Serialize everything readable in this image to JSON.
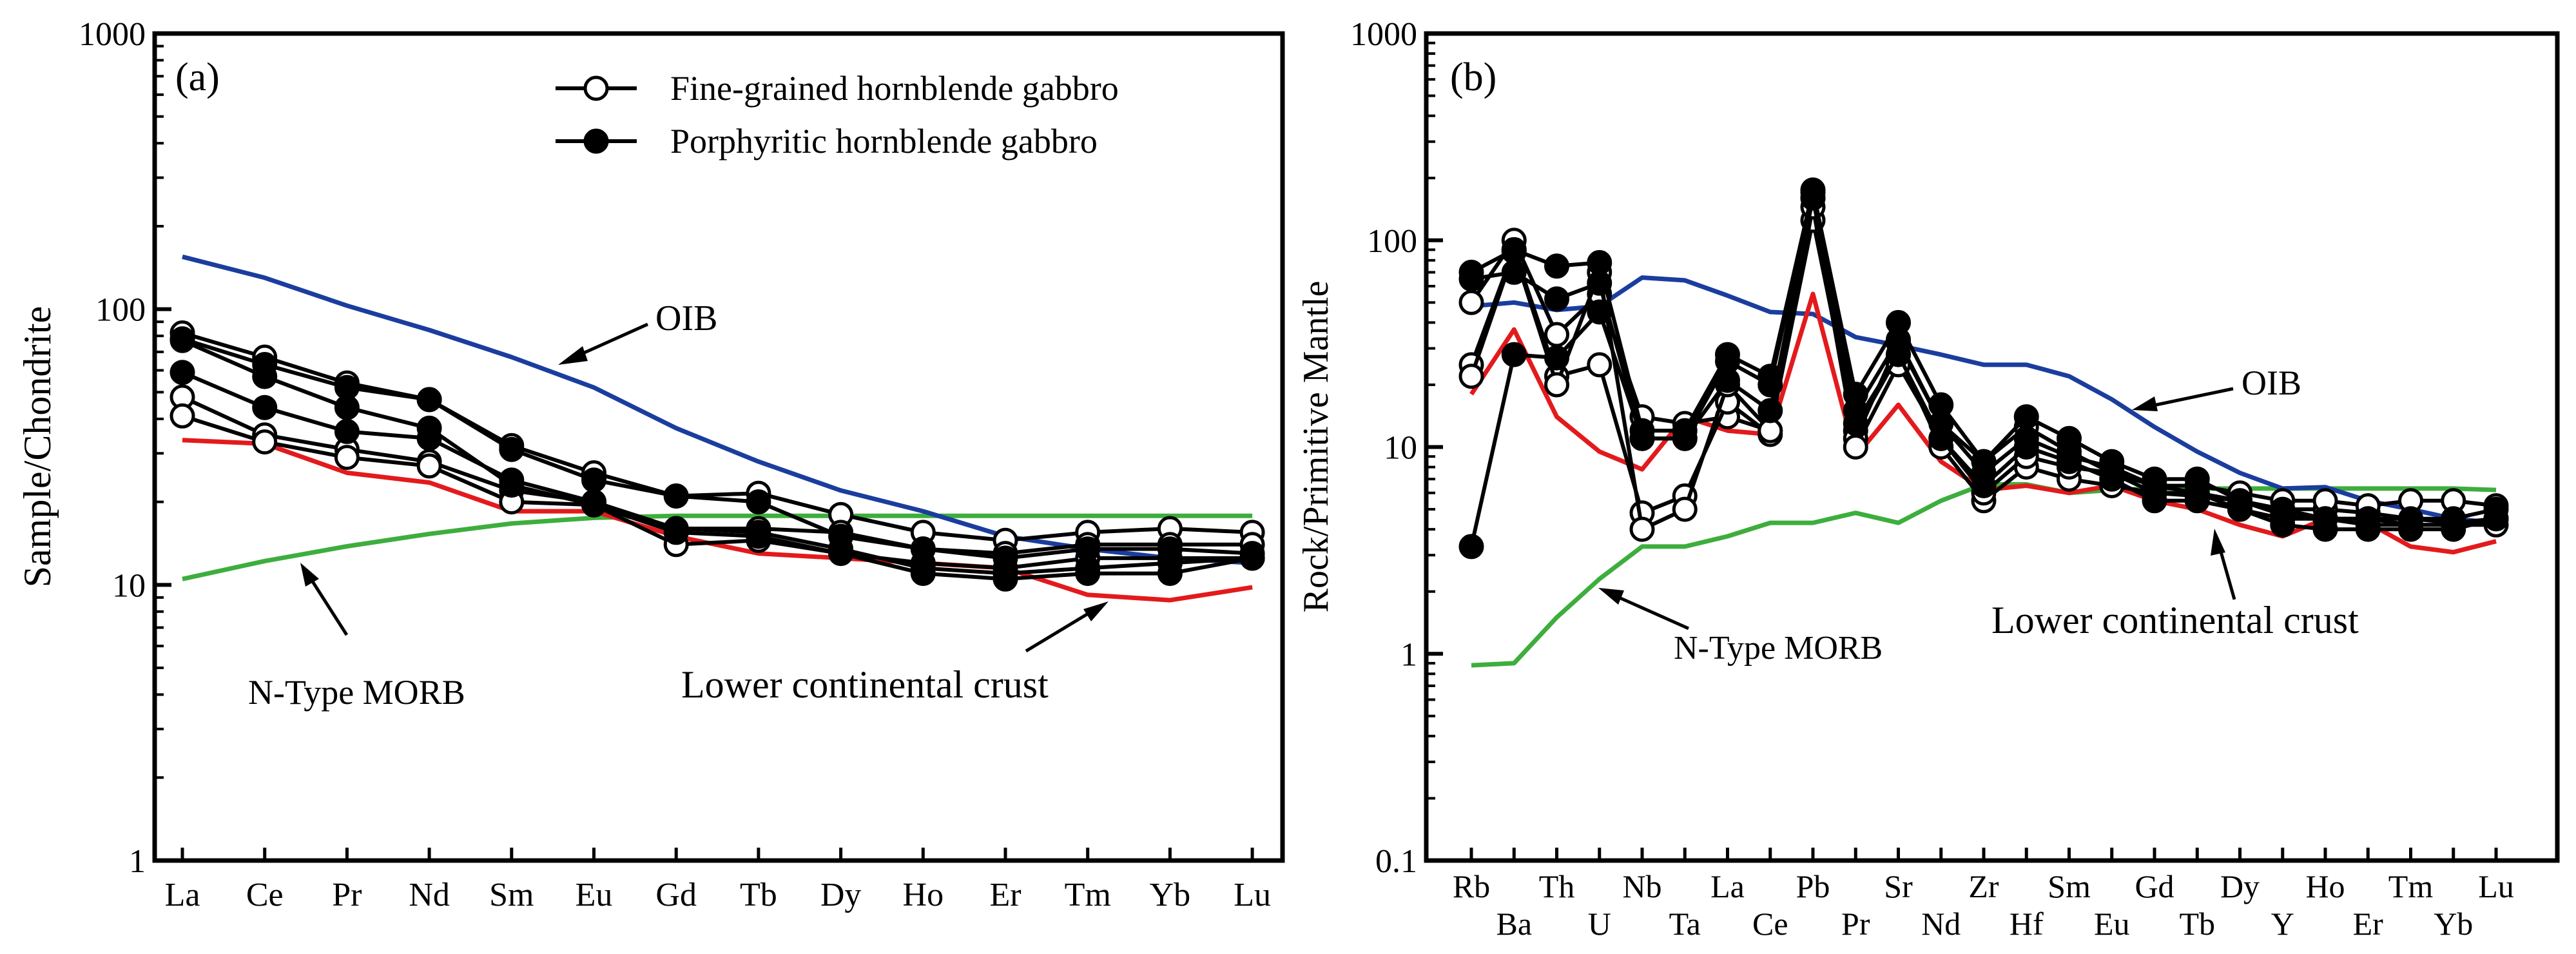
{
  "colors": {
    "oib": "#1a3d9e",
    "lcc": "#e31a1c",
    "morb": "#3dae3d",
    "sample": "#000000"
  },
  "legend": {
    "fine": "Fine-grained hornblende gabbro",
    "porph": "Porphyritic hornblende gabbro"
  },
  "chart_data": [
    {
      "type": "line",
      "panel_label": "(a)",
      "ylabel": "Sample/Chondrite",
      "xlabel": "",
      "yscale": "log",
      "ylim": [
        1,
        1000
      ],
      "yticks": [
        "1",
        "10",
        "100",
        "1000"
      ],
      "categories": [
        "La",
        "Ce",
        "Pr",
        "Nd",
        "Sm",
        "Eu",
        "Gd",
        "Tb",
        "Dy",
        "Ho",
        "Er",
        "Tm",
        "Yb",
        "Lu"
      ],
      "reference_labels": {
        "oib": "OIB",
        "morb": "N-Type MORB",
        "lcc": "Lower continental crust"
      },
      "series": [
        {
          "name": "OIB",
          "role": "oib",
          "values": [
            155,
            130,
            103,
            84,
            67,
            52,
            37,
            28,
            22,
            18.5,
            15,
            13.5,
            12.5,
            12
          ]
        },
        {
          "name": "N-Type MORB",
          "role": "morb",
          "values": [
            10.5,
            12.2,
            13.8,
            15.3,
            16.7,
            17.5,
            17.8,
            17.8,
            17.8,
            17.8,
            17.8,
            17.8,
            17.8,
            17.8
          ]
        },
        {
          "name": "Lower continental crust",
          "role": "lcc",
          "values": [
            33.5,
            32.5,
            25.5,
            23.5,
            18.5,
            18.5,
            15,
            13,
            12.5,
            12,
            11.5,
            9.2,
            8.8,
            9.8
          ]
        },
        {
          "name": "Fine-grained hornblende gabbro",
          "role": "fine",
          "values": [
            82,
            67,
            54,
            47,
            32,
            25.5,
            21,
            21.5,
            18,
            15.5,
            14.5,
            15.5,
            16,
            15.5
          ]
        },
        {
          "name": "Fine-grained hornblende gabbro",
          "role": "fine",
          "values": [
            48,
            35,
            31,
            28,
            22,
            20,
            16,
            16,
            15.5,
            13.5,
            13,
            14,
            14,
            14
          ]
        },
        {
          "name": "Fine-grained hornblende gabbro",
          "role": "fine",
          "values": [
            41,
            33,
            29,
            27,
            20,
            19.5,
            14,
            14.5,
            13,
            12,
            11.5,
            12.5,
            12.5,
            12.5
          ]
        },
        {
          "name": "Porphyritic hornblende gabbro",
          "role": "porph",
          "values": [
            78,
            63,
            52,
            47,
            31,
            24,
            21,
            20,
            15,
            13.5,
            12.5,
            13.5,
            13.5,
            13
          ]
        },
        {
          "name": "Porphyritic hornblende gabbro",
          "role": "porph",
          "values": [
            59,
            44,
            36,
            34,
            24,
            20,
            16,
            15.5,
            13.5,
            11.5,
            11,
            11.5,
            12,
            12.5
          ]
        },
        {
          "name": "Porphyritic hornblende gabbro",
          "role": "porph",
          "values": [
            77,
            57,
            44,
            37,
            23,
            19.5,
            15.5,
            15,
            13,
            11,
            10.5,
            11,
            11,
            12.5
          ]
        }
      ]
    },
    {
      "type": "line",
      "panel_label": "(b)",
      "ylabel": "Rock/Primitive Mantle",
      "xlabel": "",
      "yscale": "log",
      "ylim": [
        0.1,
        1000
      ],
      "yticks": [
        "0.1",
        "1",
        "10",
        "100",
        "1000"
      ],
      "categories": [
        "Rb",
        "Ba",
        "Th",
        "U",
        "Nb",
        "Ta",
        "La",
        "Ce",
        "Pb",
        "Pr",
        "Sr",
        "Nd",
        "Zr",
        "Hf",
        "Sm",
        "Eu",
        "Gd",
        "Tb",
        "Dy",
        "Y",
        "Ho",
        "Er",
        "Tm",
        "Yb",
        "Lu"
      ],
      "reference_labels": {
        "oib": "OIB",
        "morb": "N-Type MORB",
        "lcc": "Lower continental crust"
      },
      "series": [
        {
          "name": "OIB",
          "role": "oib",
          "values": [
            48,
            50,
            46,
            48,
            66,
            64,
            54,
            45,
            44,
            34,
            31,
            28,
            25,
            25,
            22,
            17,
            12.5,
            9.5,
            7.5,
            6.3,
            6.4,
            5.5,
            5,
            4.5,
            4.3
          ]
        },
        {
          "name": "N-Type MORB",
          "role": "morb",
          "values": [
            0.88,
            0.9,
            1.5,
            2.3,
            3.3,
            3.3,
            3.7,
            4.3,
            4.3,
            4.8,
            4.3,
            5.5,
            6.6,
            6.6,
            6,
            6.2,
            6.3,
            6.3,
            6.3,
            6.3,
            6.3,
            6.3,
            6.3,
            6.3,
            6.2
          ]
        },
        {
          "name": "Lower continental crust",
          "role": "lcc",
          "values": [
            18,
            37,
            14,
            9.5,
            7.8,
            14,
            12,
            11.5,
            55,
            9,
            16,
            8.5,
            6.2,
            6.5,
            6,
            6.5,
            5.5,
            5,
            4.2,
            3.7,
            4.5,
            4.3,
            3.3,
            3.1,
            3.5
          ]
        },
        {
          "name": "Fine-grained hornblende gabbro",
          "role": "fine",
          "values": [
            50,
            100,
            35,
            55,
            14,
            13,
            14,
            12,
            125,
            12,
            28,
            10,
            5.5,
            8,
            7,
            6.5,
            6,
            6,
            5.5,
            5,
            5,
            4.8,
            4.5,
            4.3,
            4.5
          ]
        },
        {
          "name": "Fine-grained hornblende gabbro",
          "role": "fine",
          "values": [
            25,
            90,
            22,
            25,
            4.8,
            5.8,
            16.5,
            11.5,
            160,
            11,
            32,
            13,
            8.5,
            12.5,
            9.5,
            7.5,
            6.5,
            6.5,
            6,
            5.5,
            5.5,
            5.2,
            5.5,
            5.5,
            5.2
          ]
        },
        {
          "name": "Fine-grained hornblende gabbro",
          "role": "fine",
          "values": [
            22,
            88,
            20,
            70,
            4,
            5,
            20,
            12,
            145,
            10,
            25,
            11,
            6,
            9,
            8,
            7.5,
            6,
            5.8,
            5.5,
            4.7,
            4.5,
            4.5,
            4.2,
            4.2,
            4.2
          ]
        },
        {
          "name": "Porphyritic hornblende gabbro",
          "role": "porph",
          "values": [
            70,
            90,
            75,
            78,
            12,
            12,
            28,
            22,
            175,
            18,
            40,
            16,
            8.5,
            14,
            11,
            8.5,
            7,
            7,
            5.5,
            5,
            4.5,
            4.5,
            4.5,
            4.5,
            5
          ]
        },
        {
          "name": "Porphyritic hornblende gabbro",
          "role": "porph",
          "values": [
            3.3,
            28,
            27,
            45,
            11,
            11,
            26,
            20,
            170,
            15,
            33,
            13,
            7.5,
            11,
            9,
            8,
            6.5,
            6,
            5,
            4.5,
            4.5,
            4.2,
            4.2,
            4.2,
            4.5
          ]
        },
        {
          "name": "Porphyritic hornblende gabbro",
          "role": "porph",
          "values": [
            65,
            70,
            52,
            62,
            11,
            11,
            21,
            15,
            160,
            13,
            28,
            11,
            6.5,
            10,
            8.5,
            7,
            5.5,
            5.5,
            5,
            4.2,
            4,
            4,
            4,
            4,
            4.5
          ]
        }
      ]
    }
  ]
}
